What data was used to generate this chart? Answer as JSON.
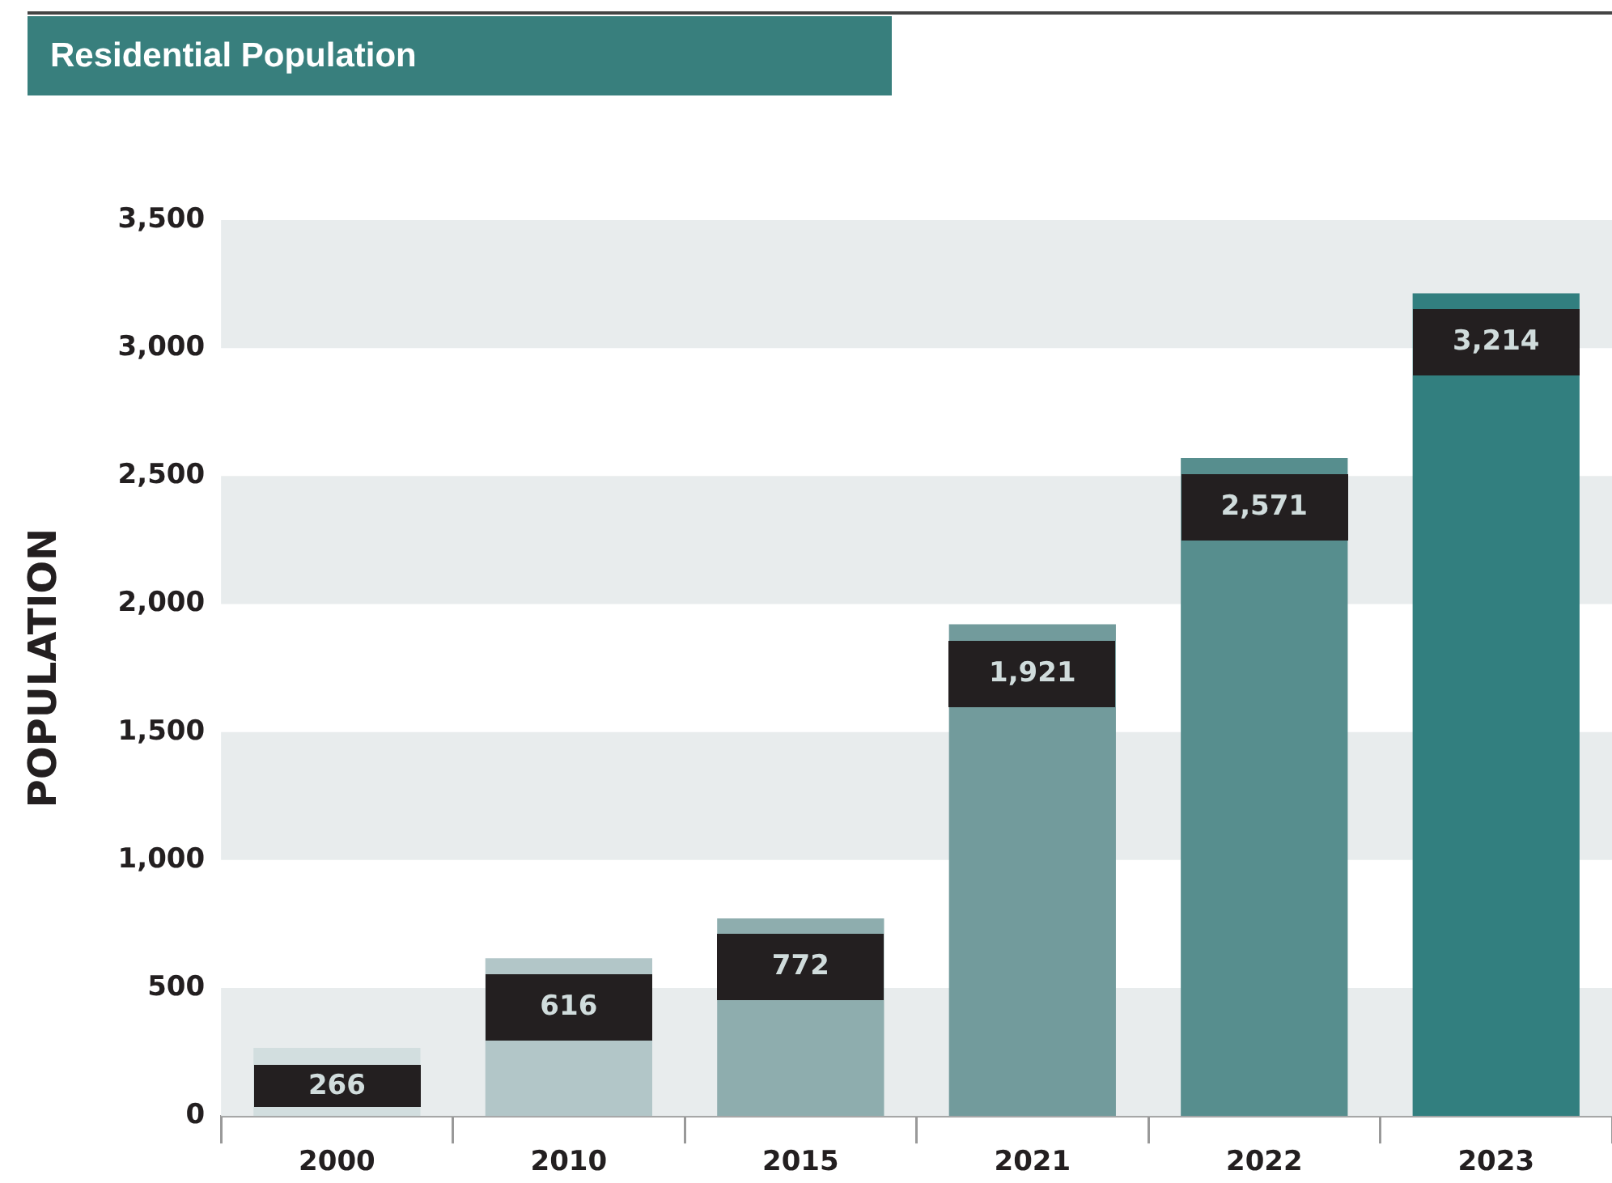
{
  "chart_data": {
    "type": "bar",
    "title": "Residential Population",
    "ylabel": "POPULATION",
    "categories": [
      "2000",
      "2010",
      "2015",
      "2021",
      "2022",
      "2023"
    ],
    "values": [
      266,
      616,
      772,
      1921,
      2571,
      3214
    ],
    "colors": [
      "#d2dedf",
      "#b2c6c8",
      "#8eadae",
      "#729b9c",
      "#578e8e",
      "#327f7f"
    ],
    "ylim": [
      0,
      3500
    ],
    "yticks": [
      {
        "value": 0,
        "label": "0"
      },
      {
        "value": 500,
        "label": "500"
      },
      {
        "value": 1000,
        "label": "1,000"
      },
      {
        "value": 1500,
        "label": "1,500"
      },
      {
        "value": 2000,
        "label": "2,000"
      },
      {
        "value": 2500,
        "label": "2,500"
      },
      {
        "value": 3000,
        "label": "3,000"
      },
      {
        "value": 3500,
        "label": "3,500"
      }
    ],
    "bands": [
      {
        "axis": "y",
        "from": 0,
        "to": 500,
        "color": "#e8eced"
      },
      {
        "axis": "y",
        "from": 1000,
        "to": 1500,
        "color": "#e8eced"
      },
      {
        "axis": "y",
        "from": 2000,
        "to": 2500,
        "color": "#e8eced"
      },
      {
        "axis": "y",
        "from": 3000,
        "to": 3500,
        "color": "#e8eced"
      }
    ],
    "value_labels": [
      "266",
      "616",
      "772",
      "1,921",
      "2,571",
      "3,214"
    ],
    "grid": false,
    "legend": false
  }
}
